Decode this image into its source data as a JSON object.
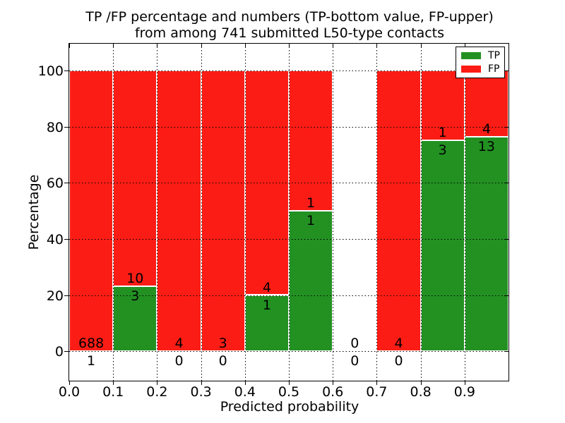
{
  "figure": {
    "title_line1": "TP /FP percentage and numbers (TP-bottom value, FP-upper)",
    "title_line2": "from among 741 submitted L50-type contacts",
    "xlabel": "Predicted probability",
    "ylabel": "Percentage"
  },
  "legend": {
    "items": [
      {
        "label": "TP",
        "color": "#229122"
      },
      {
        "label": "FP",
        "color": "#fb1d15"
      }
    ]
  },
  "chart_data": {
    "type": "bar",
    "subtype": "stacked-percentage-histogram",
    "title": "TP /FP percentage and numbers (TP-bottom value, FP-upper) from among 741 submitted L50-type contacts",
    "xlabel": "Predicted probability",
    "ylabel": "Percentage",
    "xlim": [
      0.0,
      1.0
    ],
    "ylim": [
      -10.5,
      109.5
    ],
    "x_tick_labels": [
      "0.0",
      "0.1",
      "0.2",
      "0.3",
      "0.4",
      "0.5",
      "0.6",
      "0.7",
      "0.8",
      "0.9"
    ],
    "y_tick_values": [
      0,
      20,
      40,
      60,
      80,
      100
    ],
    "y_tick_labels": [
      "0",
      "20",
      "40",
      "60",
      "80",
      "100"
    ],
    "grid": true,
    "legend_position": "upper right",
    "total_contacts": 741,
    "colors": {
      "tp": "#229122",
      "fp": "#fb1d15"
    },
    "series": [
      {
        "name": "TP",
        "color": "#229122",
        "counts": [
          1,
          3,
          0,
          0,
          1,
          1,
          0,
          0,
          3,
          13
        ]
      },
      {
        "name": "FP",
        "color": "#fb1d15",
        "counts": [
          688,
          10,
          4,
          3,
          4,
          1,
          0,
          4,
          1,
          4
        ]
      }
    ],
    "bins": [
      {
        "range": [
          0.0,
          0.1
        ],
        "tp": 1,
        "fp": 688,
        "tp_pct": 0.15,
        "tp_label": "1",
        "fp_label": "688"
      },
      {
        "range": [
          0.1,
          0.2
        ],
        "tp": 3,
        "fp": 10,
        "tp_pct": 23.08,
        "tp_label": "3",
        "fp_label": "10"
      },
      {
        "range": [
          0.2,
          0.3
        ],
        "tp": 0,
        "fp": 4,
        "tp_pct": 0,
        "tp_label": "0",
        "fp_label": "4"
      },
      {
        "range": [
          0.3,
          0.4
        ],
        "tp": 0,
        "fp": 3,
        "tp_pct": 0,
        "tp_label": "0",
        "fp_label": "3"
      },
      {
        "range": [
          0.4,
          0.5
        ],
        "tp": 1,
        "fp": 4,
        "tp_pct": 20.0,
        "tp_label": "1",
        "fp_label": "4"
      },
      {
        "range": [
          0.5,
          0.6
        ],
        "tp": 1,
        "fp": 1,
        "tp_pct": 50.0,
        "tp_label": "1",
        "fp_label": "1"
      },
      {
        "range": [
          0.6,
          0.7
        ],
        "tp": 0,
        "fp": 0,
        "tp_pct": 0,
        "tp_label": "0",
        "fp_label": "0"
      },
      {
        "range": [
          0.7,
          0.8
        ],
        "tp": 0,
        "fp": 4,
        "tp_pct": 0,
        "tp_label": "0",
        "fp_label": "4"
      },
      {
        "range": [
          0.8,
          0.9
        ],
        "tp": 3,
        "fp": 1,
        "tp_pct": 75.0,
        "tp_label": "3",
        "fp_label": "1"
      },
      {
        "range": [
          0.9,
          1.0
        ],
        "tp": 13,
        "fp": 4,
        "tp_pct": 76.47,
        "tp_label": "13",
        "fp_label": "4"
      }
    ]
  }
}
